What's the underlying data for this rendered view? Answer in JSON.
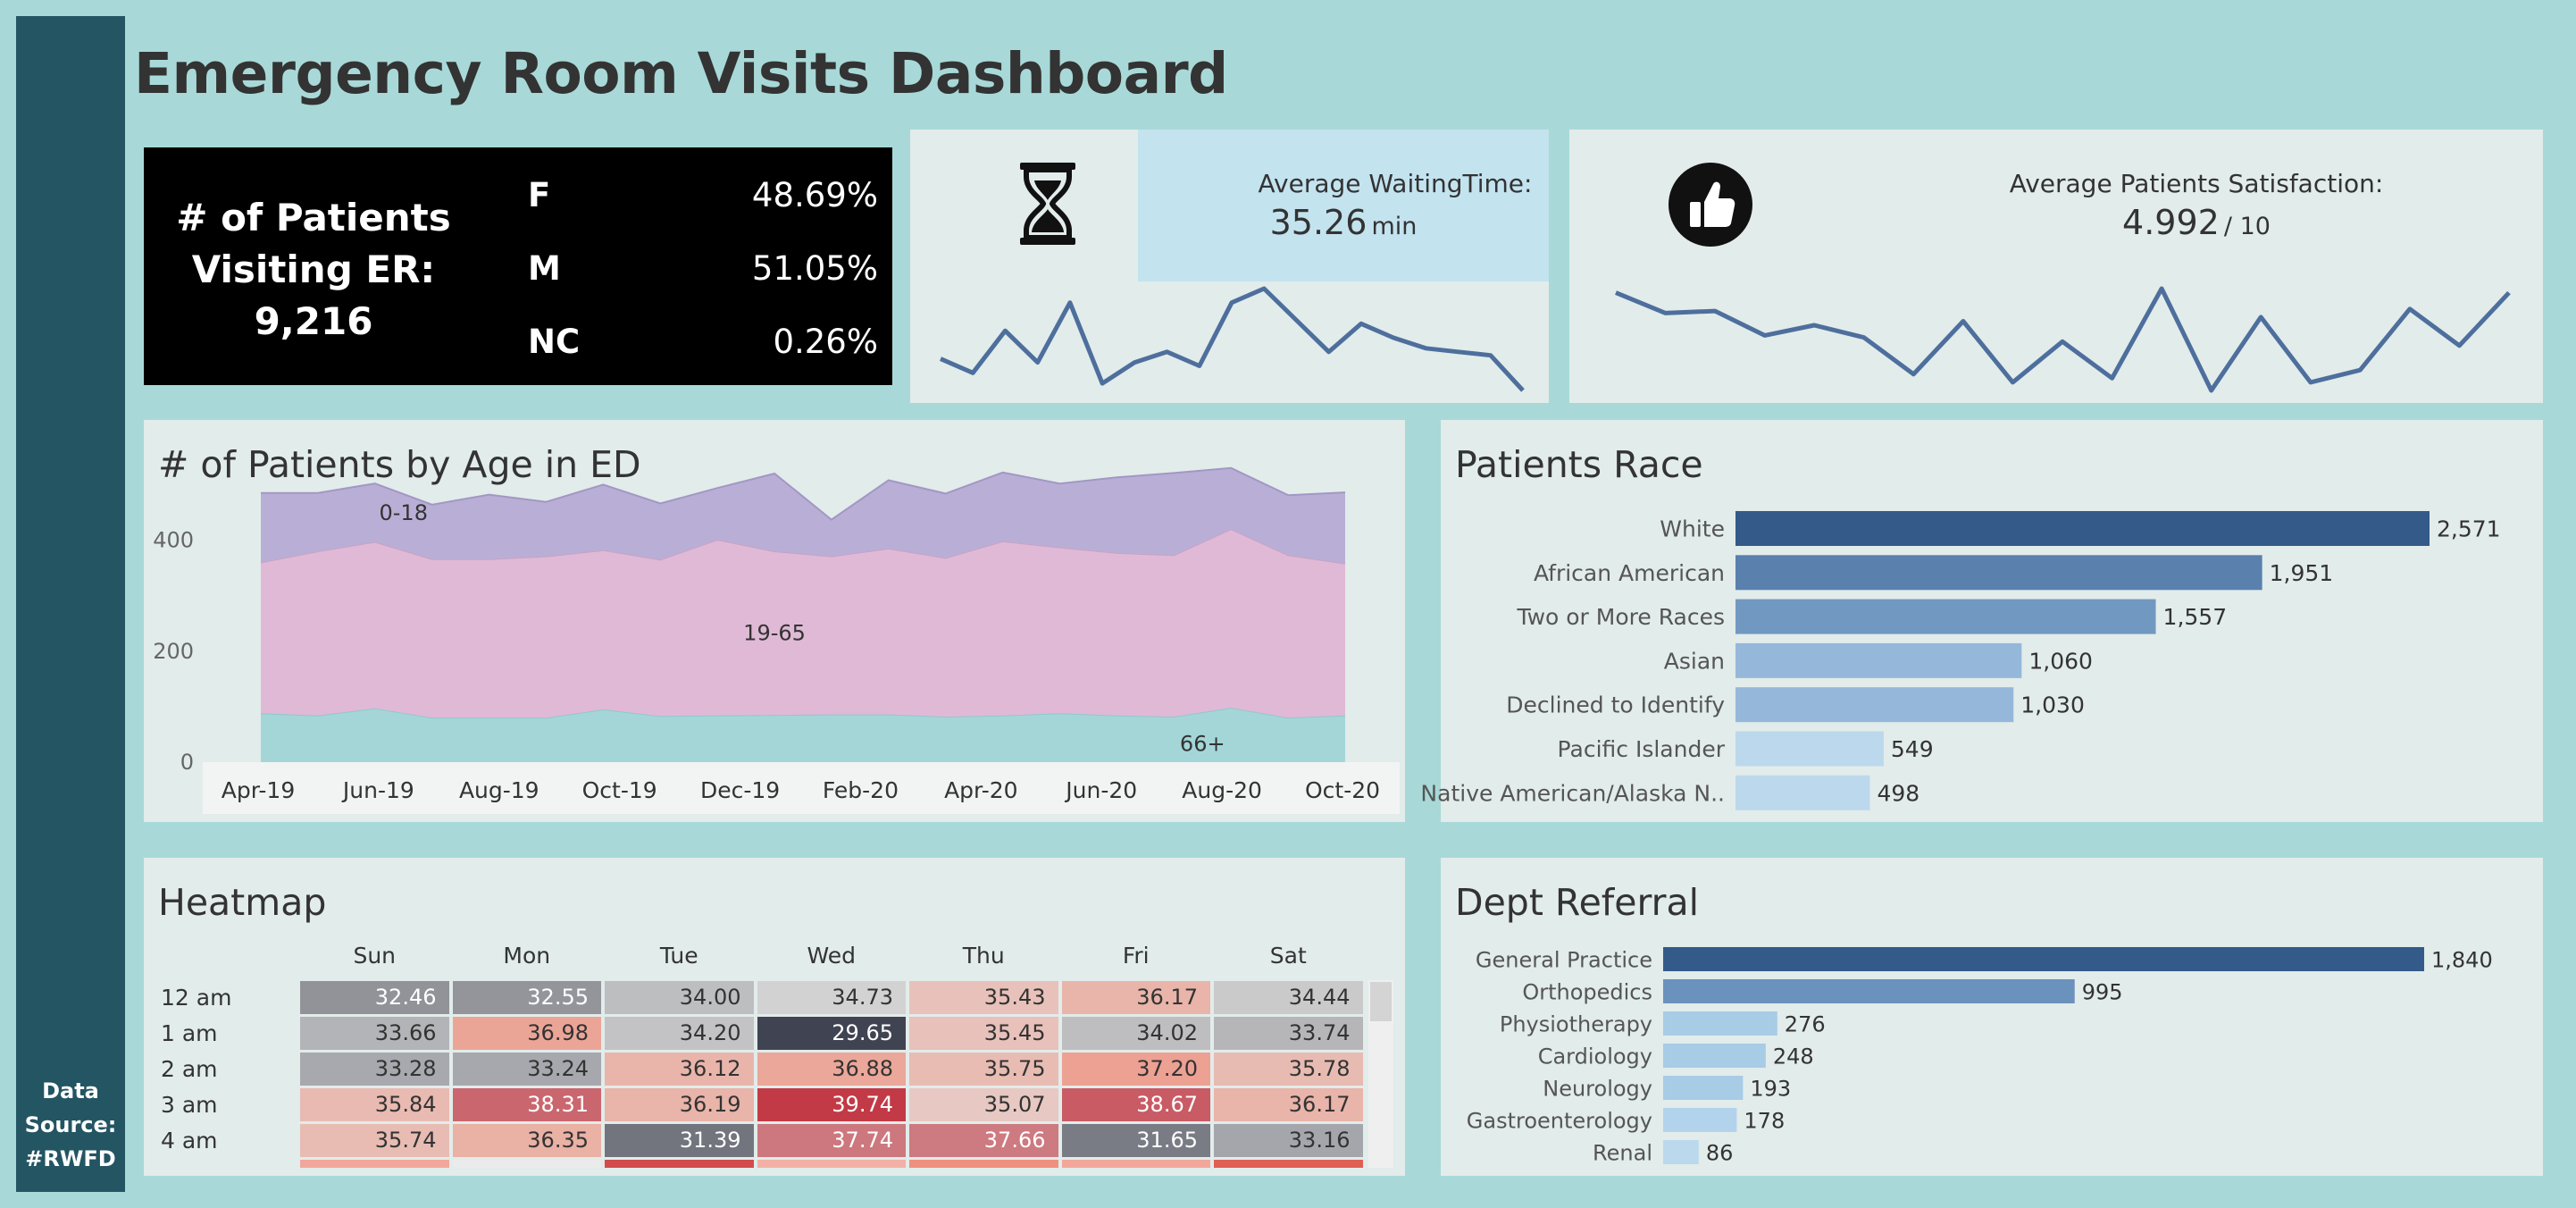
{
  "dashboard": {
    "title": "Emergency Room Visits Dashboard",
    "data_source": [
      "Data",
      "Source:",
      "#RWFD"
    ]
  },
  "patients_kpi": {
    "label_line1": "# of Patients",
    "label_line2": "Visiting ER:",
    "total": "9,216",
    "genders": [
      {
        "code": "F",
        "pct": "48.69%"
      },
      {
        "code": "M",
        "pct": "51.05%"
      },
      {
        "code": "NC",
        "pct": "0.26%"
      }
    ]
  },
  "waiting_kpi": {
    "icon": "hourglass-icon",
    "label": "Average WaitingTime:",
    "value": "35.26",
    "unit": "min",
    "trend": [
      11,
      7,
      19,
      10,
      27,
      4,
      10,
      13,
      9,
      27,
      31,
      22,
      13,
      21,
      17,
      14,
      13,
      12,
      2
    ]
  },
  "satisfaction_kpi": {
    "icon": "thumbs-up-icon",
    "label": "Average Patients Satisfaction:",
    "value": "4.992",
    "unit": "/ 10",
    "trend": [
      5.6,
      5.1,
      5.15,
      4.55,
      4.8,
      4.5,
      3.6,
      4.9,
      3.4,
      4.4,
      3.5,
      5.7,
      3.2,
      5.0,
      3.4,
      3.7,
      5.2,
      4.3,
      5.6
    ]
  },
  "age_chart": {
    "title": "# of Patients by Age in ED",
    "chart_data": {
      "type": "area",
      "stacked": true,
      "x_ticks": [
        "Apr-19",
        "Jun-19",
        "Aug-19",
        "Oct-19",
        "Dec-19",
        "Feb-20",
        "Apr-20",
        "Jun-20",
        "Aug-20",
        "Oct-20"
      ],
      "y_ticks": [
        "0",
        "200",
        "400"
      ],
      "ylim": [
        0,
        520
      ],
      "series": [
        {
          "name": "66+",
          "color": "#a4d6d8",
          "values": [
            88,
            84,
            97,
            80,
            80,
            80,
            95,
            83,
            84,
            85,
            86,
            86,
            82,
            84,
            88,
            84,
            82,
            98,
            80,
            84
          ]
        },
        {
          "name": "19-65",
          "color": "#e0b9d6",
          "values": [
            272,
            296,
            300,
            286,
            286,
            291,
            287,
            282,
            317,
            295,
            285,
            299,
            286,
            314,
            299,
            293,
            291,
            322,
            293,
            274
          ]
        },
        {
          "name": "0-18",
          "color": "#b9afd6",
          "values": [
            125,
            105,
            105,
            98,
            116,
            98,
            118,
            101,
            93,
            140,
            66,
            123,
            116,
            124,
            115,
            136,
            148,
            110,
            108,
            128
          ]
        }
      ]
    }
  },
  "race_chart": {
    "title": "Patients Race",
    "chart_data": {
      "type": "bar",
      "orientation": "horizontal",
      "categories": [
        "White",
        "African American",
        "Two or More Races",
        "Asian",
        "Declined to Identify",
        "Pacific Islander",
        "Native American/Alaska N.."
      ],
      "values": [
        2571,
        1951,
        1557,
        1060,
        1030,
        549,
        498
      ],
      "labels": [
        "2,571",
        "1,951",
        "1,557",
        "1,060",
        "1,030",
        "549",
        "498"
      ],
      "colors": [
        "#335a89",
        "#5a80ae",
        "#7198c0",
        "#95b8da",
        "#95b8da",
        "#bcd8ec",
        "#bcd8ec"
      ],
      "xlim": [
        0,
        2571
      ]
    }
  },
  "heatmap": {
    "title": "Heatmap",
    "chart_data": {
      "type": "heatmap",
      "columns": [
        "Sun",
        "Mon",
        "Tue",
        "Wed",
        "Thu",
        "Fri",
        "Sat"
      ],
      "rows": [
        "12 am",
        "1 am",
        "2 am",
        "3 am",
        "4 am"
      ],
      "values": [
        [
          "32.46",
          "32.55",
          "34.00",
          "34.73",
          "35.43",
          "36.17",
          "34.44"
        ],
        [
          "33.66",
          "36.98",
          "34.20",
          "29.65",
          "35.45",
          "34.02",
          "33.74"
        ],
        [
          "33.28",
          "33.24",
          "36.12",
          "36.88",
          "35.75",
          "37.20",
          "35.78"
        ],
        [
          "35.84",
          "38.31",
          "36.19",
          "39.74",
          "35.07",
          "38.67",
          "36.17"
        ],
        [
          "35.74",
          "36.35",
          "31.39",
          "37.74",
          "37.66",
          "31.65",
          "33.16"
        ]
      ]
    }
  },
  "referral_chart": {
    "title": "Dept Referral",
    "chart_data": {
      "type": "bar",
      "orientation": "horizontal",
      "categories": [
        "General Practice",
        "Orthopedics",
        "Physiotherapy",
        "Cardiology",
        "Neurology",
        "Gastroenterology",
        "Renal"
      ],
      "values": [
        1840,
        995,
        276,
        248,
        193,
        178,
        86
      ],
      "labels": [
        "1,840",
        "995",
        "276",
        "248",
        "193",
        "178",
        "86"
      ],
      "colors": [
        "#335a89",
        "#6b92bd",
        "#a8cbe6",
        "#a8cbe6",
        "#a8cbe6",
        "#b3d3ec",
        "#bcd8ec"
      ],
      "xlim": [
        0,
        1840
      ]
    }
  }
}
